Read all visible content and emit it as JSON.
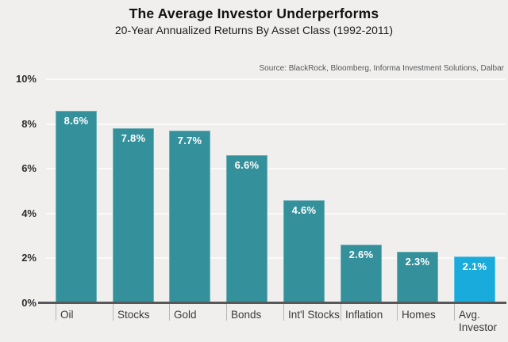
{
  "header": {
    "title": "The Average Investor Underperforms",
    "subtitle": "20-Year Annualized Returns By Asset Class (1992-2011)",
    "source": "Source: BlackRock, Bloomberg, Informa Investment Solutions, Dalbar"
  },
  "chart_data": {
    "type": "bar",
    "title": "The Average Investor Underperforms",
    "subtitle": "20-Year Annualized Returns By Asset Class (1992-2011)",
    "categories": [
      "Oil",
      "Stocks",
      "Gold",
      "Bonds",
      "Int'l Stocks",
      "Inflation",
      "Homes",
      "Avg. Investor"
    ],
    "values": [
      8.6,
      7.8,
      7.7,
      6.6,
      4.6,
      2.6,
      2.3,
      2.1
    ],
    "value_labels": [
      "8.6%",
      "7.8%",
      "7.7%",
      "6.6%",
      "4.6%",
      "2.6%",
      "2.3%",
      "2.1%"
    ],
    "xlabel": "",
    "ylabel": "",
    "ylim": [
      0,
      10
    ],
    "ytick_values": [
      0,
      2,
      4,
      6,
      8,
      10
    ],
    "ytick_labels": [
      "0%",
      "2%",
      "4%",
      "6%",
      "8%",
      "10%"
    ],
    "grid": "horizontal",
    "legend": "none",
    "colors": {
      "bar": "#34919b",
      "highlight_bar": "#18abdc",
      "highlight_index": 7,
      "background": "#f0efed",
      "axis": "#58585a",
      "gridline": "#fafaf8",
      "value_label_text": "#ffffff"
    }
  }
}
